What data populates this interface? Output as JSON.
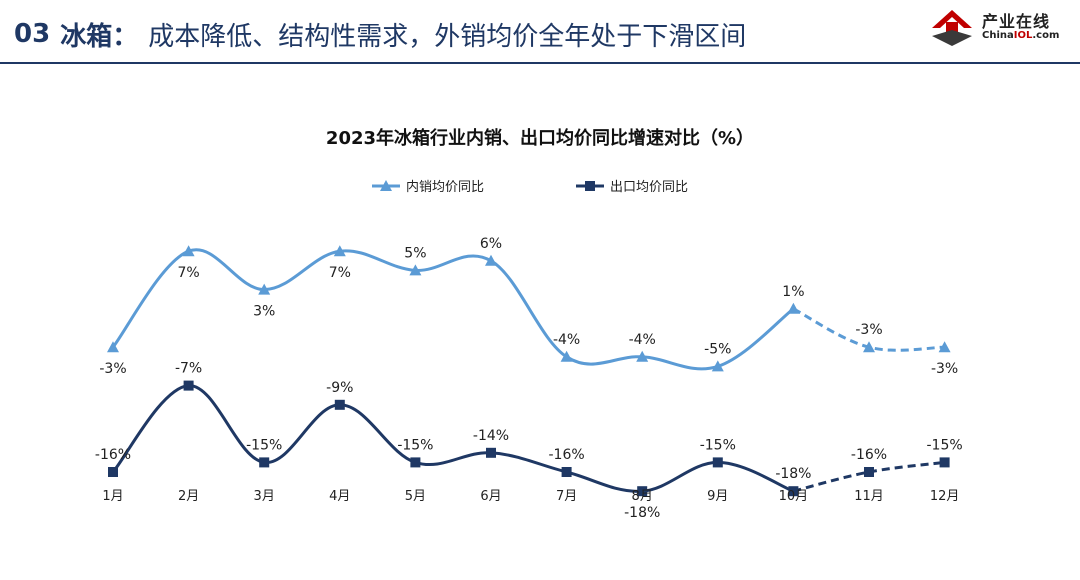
{
  "slide": {
    "number": "03",
    "heading": "冰箱：",
    "subtitle": "成本降低、结构性需求，外销均价全年处于下滑区间"
  },
  "logo": {
    "brand": "产业在线",
    "site_prefix": "China",
    "site_highlight": "IOL",
    "site_suffix": ".com"
  },
  "colors": {
    "title": "#1f3864",
    "domestic": "#5b9bd5",
    "export": "#1f3864",
    "logo_red": "#c00000"
  },
  "chart_data": {
    "type": "line",
    "title": "2023年冰箱行业内销、出口均价同比增速对比（%）",
    "categories": [
      "1月",
      "2月",
      "3月",
      "4月",
      "5月",
      "6月",
      "7月",
      "8月",
      "9月",
      "10月",
      "11月",
      "12月"
    ],
    "legend_position": "top",
    "grid": false,
    "series": [
      {
        "name": "内销均价同比",
        "marker": "triangle",
        "color": "#5b9bd5",
        "values": [
          -3,
          7,
          3,
          7,
          5,
          6,
          -4,
          -4,
          -5,
          1,
          -3,
          -3
        ],
        "labels": [
          "-3%",
          "7%",
          "3%",
          "7%",
          "5%",
          "6%",
          "-4%",
          "-4%",
          "-5%",
          "1%",
          "-3%",
          "-3%"
        ],
        "dashed_from_index": 9
      },
      {
        "name": "出口均价同比",
        "marker": "square",
        "color": "#1f3864",
        "values": [
          -16,
          -7,
          -15,
          -9,
          -15,
          -14,
          -16,
          -18,
          -15,
          -18,
          -16,
          -15
        ],
        "labels": [
          "-16%",
          "-7%",
          "-15%",
          "-9%",
          "-15%",
          "-14%",
          "-16%",
          "-18%",
          "-15%",
          "-18%",
          "-16%",
          "-15%"
        ],
        "dashed_from_index": 9
      }
    ]
  }
}
